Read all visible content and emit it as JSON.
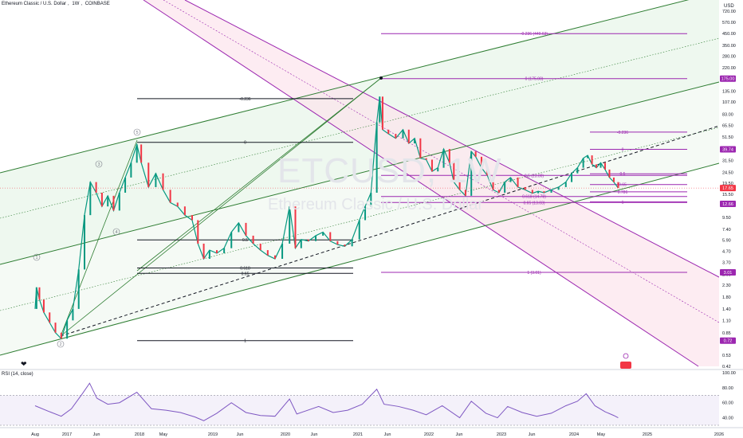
{
  "header": {
    "symbol": "Ethereum Classic / U.S. Dollar",
    "interval": "1W",
    "exchange": "COINBASE"
  },
  "currency_label": "USD",
  "watermark": {
    "ticker": "ETCUSD, 1W",
    "name": "Ethereum Classic / U.S. Dollar"
  },
  "rsi_label": "RSI (14, close)",
  "chart_data": [
    {
      "type": "line",
      "price_scale": "log",
      "y_ticks": [
        "720.00",
        "570.00",
        "450.00",
        "350.00",
        "280.00",
        "220.00",
        "175.00",
        "135.00",
        "107.00",
        "83.00",
        "65.50",
        "51.50",
        "39.74",
        "31.50",
        "24.50",
        "19.50",
        "15.50",
        "12.66",
        "9.50",
        "7.40",
        "5.90",
        "4.70",
        "3.70",
        "2.90",
        "2.30",
        "1.80",
        "1.40",
        "1.10",
        "0.85",
        "0.72",
        "0.53",
        "0.42"
      ],
      "x_ticks": [
        "Aug",
        "2017",
        "Jun",
        "2018",
        "May",
        "2019",
        "Jun",
        "2020",
        "Jun",
        "2021",
        "Jun",
        "2022",
        "Jun",
        "2023",
        "Jun",
        "2024",
        "May",
        "2025",
        "2026"
      ],
      "price_tags": [
        {
          "value": 175.0,
          "label": "175.00",
          "color": "#9c27b0"
        },
        {
          "value": 39.74,
          "label": "39.74",
          "color": "#9c27b0"
        },
        {
          "value": 17.65,
          "label": "17.65",
          "color": "#f23645"
        },
        {
          "value": 12.66,
          "label": "12.66",
          "color": "#9c27b0"
        },
        {
          "value": 3.01,
          "label": "3.01",
          "color": "#9c27b0"
        },
        {
          "value": 0.72,
          "label": "0.72",
          "color": "#9c27b0"
        }
      ],
      "fib_levels_2016_2018": [
        {
          "label": "-0.236",
          "value": 115
        },
        {
          "label": "0",
          "value": 46
        },
        {
          "label": "0.5",
          "value": 5.95
        },
        {
          "label": "0.618",
          "value": 3.3
        },
        {
          "label": "0.65",
          "value": 2.95
        },
        {
          "label": "1",
          "value": 0.72
        }
      ],
      "fib_levels_2021_2022": [
        {
          "label": "-0.236 (449.63)",
          "value": 449.63
        },
        {
          "label": "0 (175.00)",
          "value": 175.0
        },
        {
          "label": "0.5 (23.00)",
          "value": 23.0
        },
        {
          "label": "0.618 (14.78)",
          "value": 14.78
        },
        {
          "label": "0.65 (13.03)",
          "value": 13.03
        },
        {
          "label": "1 (3.01)",
          "value": 3.01
        }
      ],
      "fib_levels_2023_2024": [
        {
          "label": "-0.236",
          "value": 57
        },
        {
          "label": "0",
          "value": 39.74
        },
        {
          "label": "0.5",
          "value": 23.8
        },
        {
          "label": "0.65",
          "value": 19.0
        },
        {
          "label": "0.786",
          "value": 16.3
        },
        {
          "label": "1",
          "value": 13.2
        }
      ],
      "elliott_labels": [
        "1",
        "2",
        "3",
        "4",
        "5"
      ],
      "price_series": [
        {
          "date": "2016.6",
          "close": 1.4
        },
        {
          "date": "2016.62",
          "close": 2.2
        },
        {
          "date": "2016.66",
          "close": 1.7
        },
        {
          "date": "2016.72",
          "close": 1.3
        },
        {
          "date": "2016.8",
          "close": 1.05
        },
        {
          "date": "2016.88",
          "close": 0.85
        },
        {
          "date": "2016.96",
          "close": 0.75
        },
        {
          "date": "2017.04",
          "close": 1.1
        },
        {
          "date": "2017.12",
          "close": 1.4
        },
        {
          "date": "2017.2",
          "close": 3.2
        },
        {
          "date": "2017.28",
          "close": 10
        },
        {
          "date": "2017.36",
          "close": 20
        },
        {
          "date": "2017.44",
          "close": 16
        },
        {
          "date": "2017.52",
          "close": 12
        },
        {
          "date": "2017.6",
          "close": 15
        },
        {
          "date": "2017.68",
          "close": 11
        },
        {
          "date": "2017.76",
          "close": 16
        },
        {
          "date": "2017.84",
          "close": 22
        },
        {
          "date": "2017.92",
          "close": 30
        },
        {
          "date": "2018.0",
          "close": 44
        },
        {
          "date": "2018.06",
          "close": 30
        },
        {
          "date": "2018.16",
          "close": 18
        },
        {
          "date": "2018.26",
          "close": 24
        },
        {
          "date": "2018.36",
          "close": 17
        },
        {
          "date": "2018.46",
          "close": 13
        },
        {
          "date": "2018.56",
          "close": 12
        },
        {
          "date": "2018.66",
          "close": 10
        },
        {
          "date": "2018.76",
          "close": 9
        },
        {
          "date": "2018.84",
          "close": 5.5
        },
        {
          "date": "2018.92",
          "close": 4
        },
        {
          "date": "2019.0",
          "close": 4.8
        },
        {
          "date": "2019.1",
          "close": 4.5
        },
        {
          "date": "2019.2",
          "close": 5
        },
        {
          "date": "2019.3",
          "close": 7
        },
        {
          "date": "2019.4",
          "close": 8.5
        },
        {
          "date": "2019.5",
          "close": 6.5
        },
        {
          "date": "2019.6",
          "close": 5.5
        },
        {
          "date": "2019.7",
          "close": 4.8
        },
        {
          "date": "2019.8",
          "close": 4.3
        },
        {
          "date": "2019.9",
          "close": 4.0
        },
        {
          "date": "2020.0",
          "close": 5.5
        },
        {
          "date": "2020.1",
          "close": 12
        },
        {
          "date": "2020.18",
          "close": 5
        },
        {
          "date": "2020.26",
          "close": 6
        },
        {
          "date": "2020.36",
          "close": 5.8
        },
        {
          "date": "2020.46",
          "close": 6.5
        },
        {
          "date": "2020.56",
          "close": 7
        },
        {
          "date": "2020.66",
          "close": 5.8
        },
        {
          "date": "2020.76",
          "close": 5.4
        },
        {
          "date": "2020.86",
          "close": 5.2
        },
        {
          "date": "2020.96",
          "close": 6
        },
        {
          "date": "2021.06",
          "close": 9
        },
        {
          "date": "2021.14",
          "close": 12
        },
        {
          "date": "2021.22",
          "close": 16
        },
        {
          "date": "2021.3",
          "close": 70
        },
        {
          "date": "2021.34",
          "close": 120
        },
        {
          "date": "2021.38",
          "close": 60
        },
        {
          "date": "2021.46",
          "close": 55
        },
        {
          "date": "2021.56",
          "close": 50
        },
        {
          "date": "2021.66",
          "close": 60
        },
        {
          "date": "2021.74",
          "close": 45
        },
        {
          "date": "2021.82",
          "close": 50
        },
        {
          "date": "2021.9",
          "close": 33
        },
        {
          "date": "2021.98",
          "close": 32
        },
        {
          "date": "2022.06",
          "close": 25
        },
        {
          "date": "2022.14",
          "close": 27
        },
        {
          "date": "2022.22",
          "close": 40
        },
        {
          "date": "2022.3",
          "close": 30
        },
        {
          "date": "2022.36",
          "close": 20
        },
        {
          "date": "2022.44",
          "close": 17
        },
        {
          "date": "2022.52",
          "close": 15
        },
        {
          "date": "2022.6",
          "close": 38
        },
        {
          "date": "2022.66",
          "close": 34
        },
        {
          "date": "2022.74",
          "close": 27
        },
        {
          "date": "2022.82",
          "close": 23
        },
        {
          "date": "2022.9",
          "close": 17
        },
        {
          "date": "2022.98",
          "close": 16
        },
        {
          "date": "2023.06",
          "close": 20
        },
        {
          "date": "2023.14",
          "close": 22
        },
        {
          "date": "2023.24",
          "close": 18
        },
        {
          "date": "2023.34",
          "close": 17
        },
        {
          "date": "2023.44",
          "close": 15.8
        },
        {
          "date": "2023.52",
          "close": 16.5
        },
        {
          "date": "2023.6",
          "close": 16
        },
        {
          "date": "2023.7",
          "close": 17
        },
        {
          "date": "2023.8",
          "close": 18
        },
        {
          "date": "2023.9",
          "close": 20
        },
        {
          "date": "2023.98",
          "close": 24
        },
        {
          "date": "2024.06",
          "close": 27
        },
        {
          "date": "2024.14",
          "close": 33
        },
        {
          "date": "2024.2",
          "close": 35
        },
        {
          "date": "2024.26",
          "close": 29
        },
        {
          "date": "2024.32",
          "close": 27
        },
        {
          "date": "2024.38",
          "close": 30
        },
        {
          "date": "2024.44",
          "close": 26
        },
        {
          "date": "2024.5",
          "close": 22
        },
        {
          "date": "2024.56",
          "close": 20
        },
        {
          "date": "2024.62",
          "close": 17.65
        }
      ]
    },
    {
      "type": "line",
      "name": "RSI (14, close)",
      "y_ticks": [
        "100.00",
        "80.00",
        "60.00",
        "40.00"
      ],
      "ylim": [
        30,
        100
      ],
      "bands": [
        30,
        70
      ],
      "rsi_series": [
        {
          "date": "2016.6",
          "value": 56
        },
        {
          "date": "2016.8",
          "value": 48
        },
        {
          "date": "2016.96",
          "value": 42
        },
        {
          "date": "2017.1",
          "value": 52
        },
        {
          "date": "2017.25",
          "value": 72
        },
        {
          "date": "2017.35",
          "value": 86
        },
        {
          "date": "2017.45",
          "value": 66
        },
        {
          "date": "2017.6",
          "value": 58
        },
        {
          "date": "2017.76",
          "value": 60
        },
        {
          "date": "2018.0",
          "value": 74
        },
        {
          "date": "2018.2",
          "value": 52
        },
        {
          "date": "2018.4",
          "value": 50
        },
        {
          "date": "2018.6",
          "value": 47
        },
        {
          "date": "2018.8",
          "value": 41
        },
        {
          "date": "2018.92",
          "value": 36
        },
        {
          "date": "2019.1",
          "value": 46
        },
        {
          "date": "2019.3",
          "value": 60
        },
        {
          "date": "2019.5",
          "value": 47
        },
        {
          "date": "2019.7",
          "value": 43
        },
        {
          "date": "2019.9",
          "value": 42
        },
        {
          "date": "2020.1",
          "value": 65
        },
        {
          "date": "2020.2",
          "value": 45
        },
        {
          "date": "2020.5",
          "value": 55
        },
        {
          "date": "2020.7",
          "value": 47
        },
        {
          "date": "2020.9",
          "value": 50
        },
        {
          "date": "2021.1",
          "value": 58
        },
        {
          "date": "2021.3",
          "value": 78
        },
        {
          "date": "2021.4",
          "value": 58
        },
        {
          "date": "2021.6",
          "value": 55
        },
        {
          "date": "2021.8",
          "value": 50
        },
        {
          "date": "2021.98",
          "value": 44
        },
        {
          "date": "2022.2",
          "value": 56
        },
        {
          "date": "2022.44",
          "value": 40
        },
        {
          "date": "2022.6",
          "value": 62
        },
        {
          "date": "2022.8",
          "value": 46
        },
        {
          "date": "2022.96",
          "value": 40
        },
        {
          "date": "2023.1",
          "value": 55
        },
        {
          "date": "2023.3",
          "value": 47
        },
        {
          "date": "2023.5",
          "value": 42
        },
        {
          "date": "2023.7",
          "value": 46
        },
        {
          "date": "2023.9",
          "value": 56
        },
        {
          "date": "2024.06",
          "value": 62
        },
        {
          "date": "2024.18",
          "value": 72
        },
        {
          "date": "2024.3",
          "value": 56
        },
        {
          "date": "2024.44",
          "value": 48
        },
        {
          "date": "2024.56",
          "value": 43
        },
        {
          "date": "2024.62",
          "value": 40
        }
      ]
    }
  ]
}
